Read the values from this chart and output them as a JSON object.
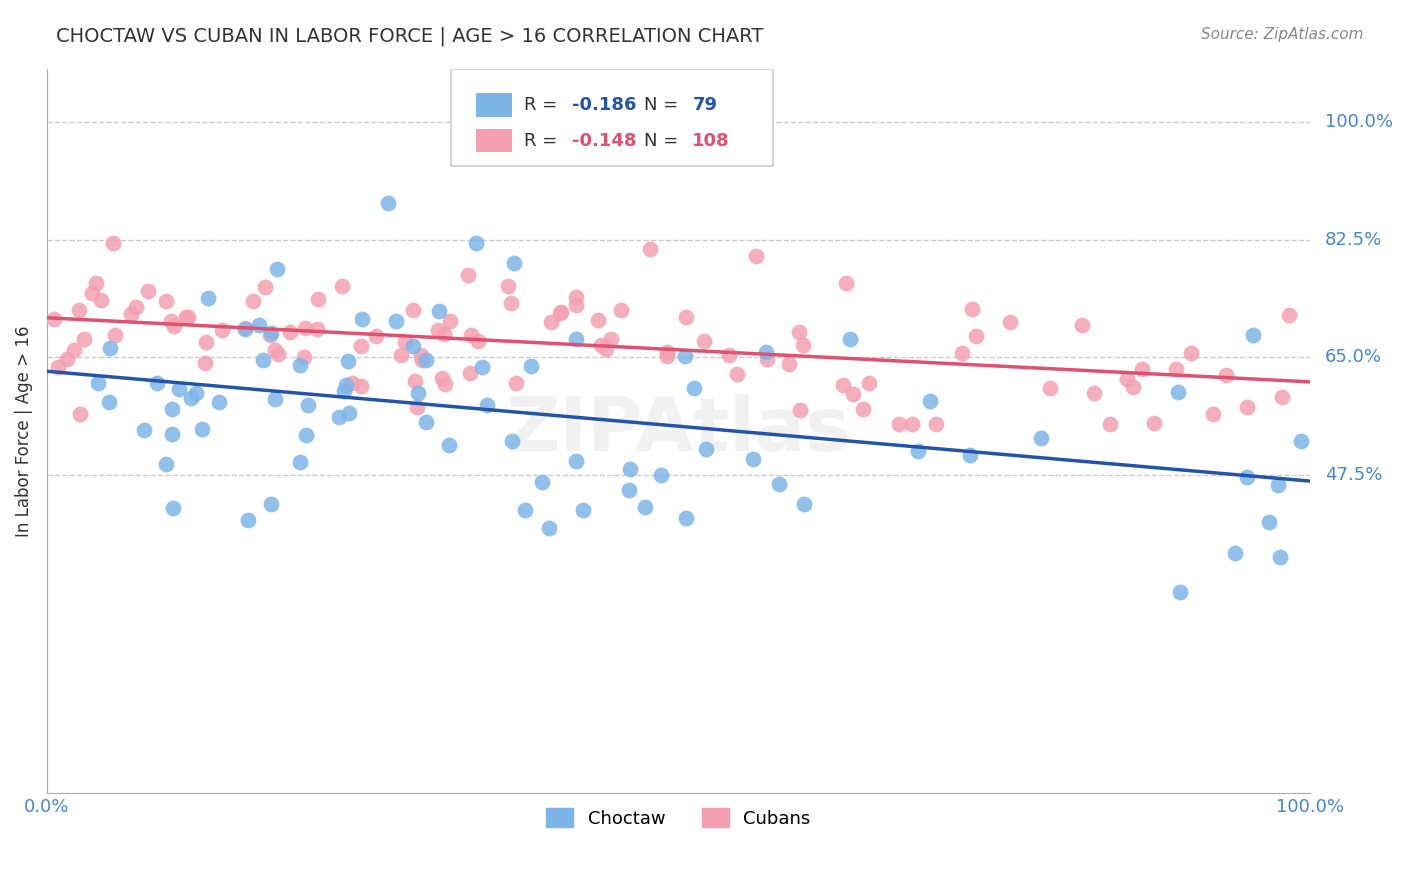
{
  "title": "CHOCTAW VS CUBAN IN LABOR FORCE | AGE > 16 CORRELATION CHART",
  "source": "Source: ZipAtlas.com",
  "ylabel": "In Labor Force | Age > 16",
  "xlim": [
    0,
    1
  ],
  "xtick_labels": [
    "0.0%",
    "100.0%"
  ],
  "xtick_positions": [
    0,
    1
  ],
  "ytick_labels": [
    "47.5%",
    "65.0%",
    "82.5%",
    "100.0%"
  ],
  "ytick_positions": [
    0.475,
    0.65,
    0.825,
    1.0
  ],
  "choctaw_R": -0.186,
  "choctaw_N": 79,
  "cuban_R": -0.148,
  "cuban_N": 108,
  "choctaw_color": "#7EB5E8",
  "cuban_color": "#F4A0B0",
  "choctaw_line_color": "#2255AA",
  "cuban_line_color": "#E05070",
  "legend_label_choctaw": "Choctaw",
  "legend_label_cuban": "Cubans",
  "watermark": "ZIPAtlas",
  "title_color": "#333333",
  "axis_label_color": "#4488CC",
  "grid_color": "#CCCCCC",
  "grid_style": "--",
  "background_color": "#FFFFFF"
}
